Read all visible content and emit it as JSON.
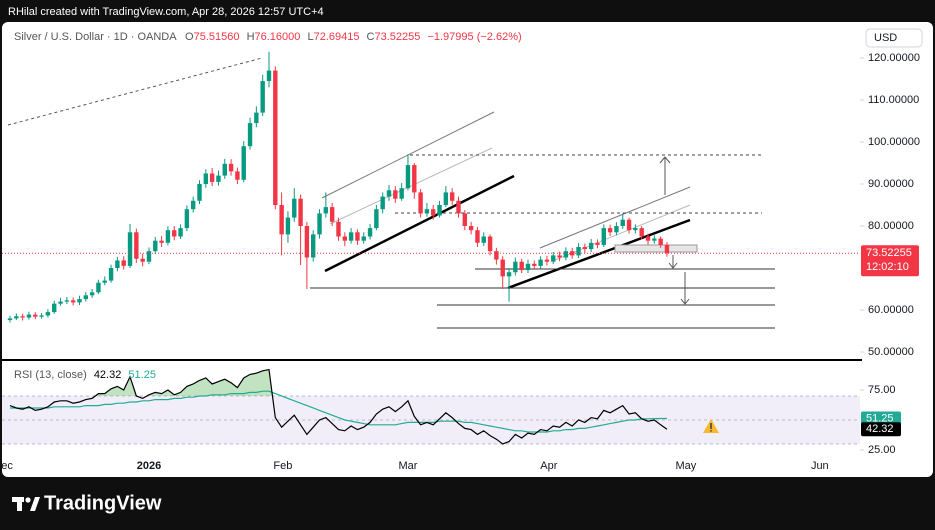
{
  "header": "RHilal created with TradingView.com, Apr 28, 2026 12:57 UTC+4",
  "footer": "TradingView",
  "chart_data": [
    {
      "type": "candlestick",
      "title": "Silver / U.S. Dollar · 1D · OANDA",
      "ohlc_legend": [
        {
          "label": "O",
          "text": "75.51560"
        },
        {
          "label": "H",
          "text": "76.16000"
        },
        {
          "label": "L",
          "text": "72.69415"
        },
        {
          "label": "C",
          "text": "73.52255"
        }
      ],
      "change_label": "−1.97995 (−2.62%)",
      "currency": "USD",
      "last_price_label": "73.52255",
      "countdown": "12:02:10",
      "up_color": "#089981",
      "down_color": "#f23645",
      "xlim": [
        -1.583,
        134.56
      ],
      "ylim": [
        48.57,
        127.14
      ],
      "yticks": [
        {
          "value": 120,
          "label": "120.00000"
        },
        {
          "value": 110,
          "label": "110.00000"
        },
        {
          "value": 100,
          "label": "100.00000"
        },
        {
          "value": 90,
          "label": "90.00000"
        },
        {
          "value": 80,
          "label": "80.00000"
        },
        {
          "value": 60,
          "label": "60.00000"
        },
        {
          "value": 50,
          "label": "50.00000"
        }
      ],
      "open": [
        57.6,
        58.0,
        58.5,
        58.2,
        58.9,
        58.4,
        58.7,
        59.5,
        61.5,
        62.0,
        62.3,
        61.8,
        62.6,
        63.5,
        64.2,
        66.5,
        67.0,
        70.0,
        71.8,
        70.5,
        78.5,
        72.2,
        71.5,
        74.0,
        76.5,
        76.0,
        79.0,
        77.5,
        79.5,
        84.0,
        86.0,
        90.0,
        92.5,
        90.5,
        92.0,
        94.8,
        93.0,
        91.0,
        99.0,
        104.5,
        107.0,
        114.5,
        117.0,
        85.0,
        78.0,
        82.0,
        86.5,
        80.0,
        72.5,
        78.0,
        83.0,
        84.5,
        81.0,
        77.5,
        76.5,
        78.5,
        76.5,
        77.5,
        79.5,
        84.0,
        87.0,
        88.5,
        86.5,
        89.0,
        94.5,
        88.0,
        83.0,
        84.0,
        82.5,
        85.0,
        88.0,
        86.0,
        83.0,
        80.0,
        79.0,
        76.0,
        77.5,
        74.0,
        72.0,
        68.0,
        69.0,
        71.5,
        69.5,
        71.0,
        70.5,
        72.0,
        71.5,
        73.0,
        72.5,
        74.0,
        73.0,
        75.0,
        74.5,
        76.0,
        75.5,
        79.5,
        78.5,
        80.0,
        81.5,
        79.0,
        79.5,
        77.5,
        76.5,
        77.0,
        75.5156
      ],
      "high": [
        58.6,
        59.2,
        59.1,
        59.6,
        59.5,
        59.3,
        60.2,
        62.2,
        62.9,
        63.1,
        63.0,
        63.4,
        64.3,
        65.0,
        67.2,
        68.0,
        70.8,
        72.6,
        72.8,
        80.5,
        79.4,
        73.4,
        74.9,
        77.4,
        77.6,
        79.9,
        80.0,
        80.4,
        84.9,
        87.0,
        90.9,
        93.5,
        93.8,
        93.2,
        96.0,
        95.9,
        93.9,
        100.2,
        105.8,
        108.5,
        116.0,
        121.5,
        118.0,
        88.0,
        83.5,
        89.0,
        87.5,
        81.0,
        79.0,
        84.0,
        88.0,
        85.5,
        82.0,
        78.5,
        79.5,
        79.2,
        78.5,
        80.5,
        85.0,
        88.0,
        89.8,
        89.5,
        90.2,
        97.0,
        95.0,
        88.8,
        85.5,
        85.0,
        86.0,
        89.5,
        89.0,
        87.0,
        83.8,
        81.0,
        79.8,
        78.5,
        78.0,
        74.8,
        72.8,
        70.0,
        72.5,
        72.2,
        72.0,
        71.8,
        72.8,
        72.9,
        73.8,
        73.9,
        74.9,
        74.8,
        75.9,
        75.8,
        76.9,
        76.8,
        80.4,
        80.3,
        80.9,
        83.0,
        82.0,
        80.4,
        80.0,
        78.2,
        77.8,
        77.5,
        76.16
      ],
      "low": [
        57.0,
        57.6,
        57.5,
        57.7,
        57.8,
        57.9,
        58.2,
        59.1,
        61.0,
        61.4,
        61.1,
        61.2,
        62.0,
        62.9,
        63.8,
        65.9,
        66.5,
        69.2,
        69.6,
        70.0,
        71.2,
        70.4,
        70.9,
        73.3,
        75.0,
        75.4,
        76.6,
        76.9,
        78.8,
        83.2,
        85.2,
        89.1,
        89.5,
        89.6,
        91.2,
        92.0,
        90.0,
        90.4,
        98.2,
        103.5,
        106.2,
        113.0,
        84.0,
        73.0,
        76.0,
        81.0,
        70.7,
        65.0,
        71.5,
        77.0,
        82.0,
        80.0,
        76.5,
        75.2,
        75.8,
        75.5,
        75.8,
        76.8,
        79.0,
        83.0,
        86.0,
        85.5,
        86.0,
        88.5,
        86.5,
        82.0,
        82.2,
        81.5,
        82.0,
        84.5,
        85.0,
        82.0,
        79.0,
        78.0,
        75.0,
        75.2,
        73.0,
        70.8,
        65.0,
        62.0,
        68.2,
        68.8,
        68.8,
        69.6,
        69.8,
        70.6,
        70.9,
        71.6,
        71.8,
        72.2,
        72.4,
        73.6,
        73.8,
        74.7,
        75.0,
        77.6,
        77.8,
        79.3,
        78.2,
        78.2,
        76.8,
        75.6,
        75.8,
        74.8,
        72.69415
      ],
      "close": [
        58.0,
        58.5,
        58.2,
        58.9,
        58.4,
        58.7,
        59.5,
        61.5,
        62.0,
        62.3,
        61.8,
        62.6,
        63.5,
        64.2,
        66.5,
        67.0,
        70.0,
        71.8,
        70.5,
        78.5,
        72.2,
        71.5,
        74.0,
        76.5,
        76.0,
        79.0,
        77.5,
        79.5,
        84.0,
        86.0,
        90.0,
        92.5,
        90.5,
        92.0,
        94.8,
        93.0,
        91.0,
        99.0,
        104.5,
        107.0,
        114.5,
        117.0,
        85.0,
        78.0,
        82.0,
        86.5,
        80.0,
        72.5,
        78.0,
        83.0,
        84.5,
        81.0,
        77.5,
        76.5,
        78.5,
        76.5,
        77.5,
        79.5,
        84.0,
        87.0,
        88.5,
        86.5,
        89.0,
        94.5,
        88.0,
        83.0,
        84.0,
        82.5,
        85.0,
        88.0,
        86.0,
        83.0,
        80.0,
        79.0,
        76.0,
        77.5,
        74.0,
        72.0,
        68.0,
        69.0,
        71.5,
        69.5,
        71.0,
        70.5,
        72.0,
        71.5,
        73.0,
        72.5,
        74.0,
        73.0,
        75.0,
        74.5,
        76.0,
        75.5,
        79.5,
        78.5,
        80.0,
        81.5,
        79.0,
        79.5,
        77.5,
        76.5,
        77.0,
        75.5,
        73.52255
      ]
    },
    {
      "type": "line",
      "title": "RSI (13, close)",
      "xlim": [
        -1.583,
        134.56
      ],
      "xticks": [
        {
          "value": -1.1,
          "label": "Dec"
        },
        {
          "value": 22,
          "label": "2026"
        },
        {
          "value": 43.2,
          "label": "Feb"
        },
        {
          "value": 63,
          "label": "Mar"
        },
        {
          "value": 85.3,
          "label": "Apr"
        },
        {
          "value": 107,
          "label": "May"
        },
        {
          "value": 128.2,
          "label": "Jun"
        }
      ],
      "ylim": [
        18.33,
        98.33
      ],
      "yticks": [
        {
          "value": 75,
          "label": "75.00"
        },
        {
          "value": 25,
          "label": "25.00"
        }
      ],
      "band": [
        30,
        70
      ],
      "midline": 50,
      "overbought_fill": "#4caf50",
      "series": [
        {
          "color": "#000000",
          "last_label": "42.32",
          "values": [
            62,
            60,
            59,
            61,
            58,
            59,
            61,
            65,
            66,
            66,
            64,
            65,
            67,
            68,
            72,
            72,
            76,
            78,
            75,
            86,
            70,
            68,
            71,
            73,
            72,
            75,
            71,
            73,
            78,
            80,
            83,
            85,
            80,
            82,
            84,
            81,
            77,
            85,
            88,
            89,
            91,
            92,
            52,
            44,
            49,
            54,
            46,
            38,
            44,
            50,
            52,
            47,
            42,
            41,
            45,
            42,
            44,
            48,
            55,
            59,
            61,
            57,
            61,
            66,
            53,
            46,
            48,
            46,
            51,
            56,
            52,
            47,
            43,
            42,
            38,
            41,
            37,
            34,
            30,
            32,
            38,
            35,
            39,
            38,
            42,
            41,
            45,
            44,
            48,
            45,
            50,
            48,
            52,
            51,
            58,
            56,
            59,
            62,
            55,
            56,
            51,
            49,
            50,
            46,
            42.32
          ]
        },
        {
          "color": "#22ab94",
          "last_label": "51.25",
          "values": [
            60,
            60,
            60,
            60,
            60,
            60,
            60,
            61,
            61,
            61,
            61,
            61,
            62,
            62,
            62,
            63,
            63,
            64,
            64,
            65,
            65,
            66,
            66,
            67,
            67,
            67,
            68,
            68,
            69,
            69,
            70,
            70,
            71,
            71,
            71,
            72,
            72,
            72,
            73,
            73,
            74,
            74,
            72,
            70,
            68,
            66,
            64,
            62,
            60,
            58,
            56,
            54,
            52,
            50,
            49,
            48,
            47,
            46,
            46,
            46,
            46,
            46,
            47,
            48,
            48,
            48,
            48,
            48,
            49,
            49,
            49,
            49,
            48,
            48,
            47,
            46,
            45,
            44,
            43,
            42,
            41,
            41,
            40,
            40,
            40,
            40,
            41,
            41,
            42,
            42,
            43,
            43,
            44,
            45,
            46,
            47,
            48,
            49,
            50,
            50,
            51,
            51,
            51.2,
            51.25,
            51.25
          ]
        }
      ]
    }
  ]
}
